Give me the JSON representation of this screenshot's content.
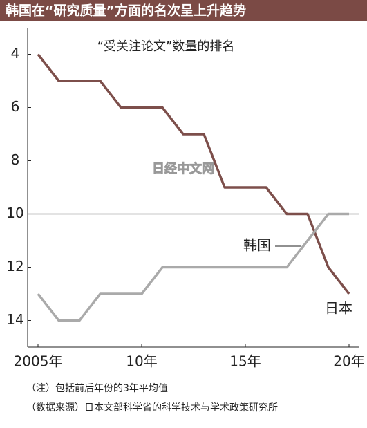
{
  "chart_data": {
    "type": "line",
    "title": "韩国在“研究质量”方面的名次呈上升趋势",
    "subtitle": "“受关注论文”数量的排名",
    "x": [
      2005,
      2006,
      2007,
      2008,
      2009,
      2010,
      2011,
      2012,
      2013,
      2014,
      2015,
      2016,
      2017,
      2018,
      2019,
      2020
    ],
    "series": [
      {
        "name": "日本",
        "color": "#7d4f4b",
        "values": [
          4,
          5,
          5,
          5,
          6,
          6,
          6,
          7,
          7,
          9,
          9,
          9,
          10,
          10,
          12,
          13
        ]
      },
      {
        "name": "韩国",
        "color": "#aaaaaa",
        "values": [
          13,
          14,
          14,
          13,
          13,
          13,
          12,
          12,
          12,
          12,
          12,
          12,
          12,
          11,
          10,
          10
        ]
      }
    ],
    "xlim": [
      2004.5,
      2020.5
    ],
    "xticks": [
      {
        "value": 2005,
        "label": "2005年"
      },
      {
        "value": 2010,
        "label": "10年"
      },
      {
        "value": 2015,
        "label": "15年"
      },
      {
        "value": 2020,
        "label": "20年"
      }
    ],
    "ylim": [
      15,
      3
    ],
    "yticks": [
      4,
      6,
      8,
      10,
      12,
      14
    ],
    "reference_line": 10,
    "watermark": "日经中文网",
    "notes": [
      "（注）包括前后年份的3年平均值",
      "（数据来源）日本文部科学省的科学技术与学术政策研究所"
    ]
  }
}
